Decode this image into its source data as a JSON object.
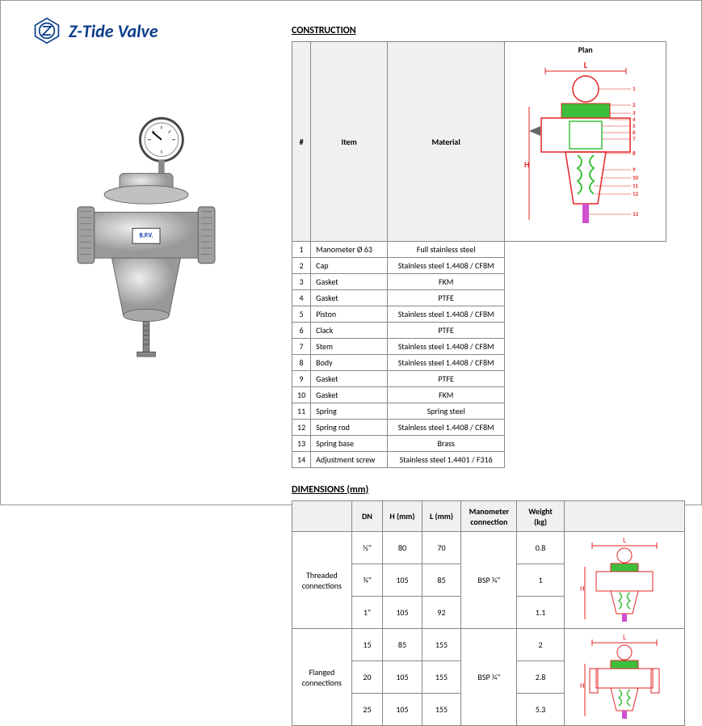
{
  "brand": {
    "name": "Z-Tide Valve"
  },
  "sections": {
    "construction": {
      "title": "CONSTRUCTION",
      "headers": [
        "#",
        "Item",
        "Material",
        "Plan"
      ],
      "rows": [
        {
          "n": "1",
          "item": "Manometer Ø 63",
          "mat": "Full stainless steel"
        },
        {
          "n": "2",
          "item": "Cap",
          "mat": "Stainless steel 1.4408 / CF8M"
        },
        {
          "n": "3",
          "item": "Gasket",
          "mat": "FKM"
        },
        {
          "n": "4",
          "item": "Gasket",
          "mat": "PTFE"
        },
        {
          "n": "5",
          "item": "Piston",
          "mat": "Stainless steel 1.4408 / CF8M"
        },
        {
          "n": "6",
          "item": "Clack",
          "mat": "PTFE"
        },
        {
          "n": "7",
          "item": "Stem",
          "mat": "Stainless steel 1.4408 / CF8M"
        },
        {
          "n": "8",
          "item": "Body",
          "mat": "Stainless steel 1.4408 / CF8M"
        },
        {
          "n": "9",
          "item": "Gasket",
          "mat": "PTFE"
        },
        {
          "n": "10",
          "item": "Gasket",
          "mat": "FKM"
        },
        {
          "n": "11",
          "item": "Spring",
          "mat": "Spring steel"
        },
        {
          "n": "12",
          "item": "Spring rod",
          "mat": "Stainless steel 1.4408 / CF8M"
        },
        {
          "n": "13",
          "item": "Spring base",
          "mat": "Brass"
        },
        {
          "n": "14",
          "item": "Adjustment screw",
          "mat": "Stainless steel 1.4401 / F316"
        }
      ]
    },
    "dimensions": {
      "title": "DIMENSIONS (mm)",
      "headers": [
        "",
        "DN",
        "H (mm)",
        "L (mm)",
        "Manometer connection",
        "Weight (kg)",
        ""
      ],
      "groups": [
        {
          "label": "Threaded connections",
          "manometer": "BSP ¼\"",
          "rows": [
            {
              "dn": "½\"",
              "h": "80",
              "l": "70",
              "w": "0.8"
            },
            {
              "dn": "¾\"",
              "h": "105",
              "l": "85",
              "w": "1"
            },
            {
              "dn": "1\"",
              "h": "105",
              "l": "92",
              "w": "1.1"
            }
          ]
        },
        {
          "label": "Flanged connections",
          "manometer": "BSP ¼\"",
          "rows": [
            {
              "dn": "15",
              "h": "85",
              "l": "155",
              "w": "2"
            },
            {
              "dn": "20",
              "h": "105",
              "l": "155",
              "w": "2.8"
            },
            {
              "dn": "25",
              "h": "105",
              "l": "155",
              "w": "5.3"
            }
          ]
        }
      ]
    }
  },
  "colors": {
    "brand": "#0a3d8a",
    "border": "#888888",
    "header_bg": "#f0f0f0",
    "diagram_red": "#e32626",
    "diagram_green": "#3bbf3b",
    "diagram_magenta": "#d050d0",
    "valve_grey": "#b8b8b8"
  },
  "product_label": "B.P.V.",
  "dim_label_L": "L",
  "dim_label_H": "H"
}
